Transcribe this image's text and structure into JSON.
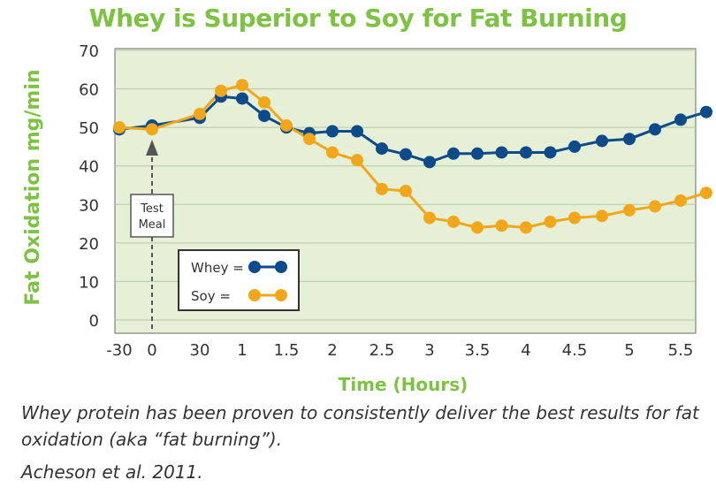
{
  "chart_data": {
    "type": "line",
    "title": "Whey is Superior to Soy for Fat Burning",
    "xlabel": "Time (Hours)",
    "ylabel": "Fat Oxidation mg/min",
    "x_tick_labels": [
      "-30",
      "0",
      "30",
      "1",
      "1.5",
      "2",
      "2.5",
      "3",
      "3.5",
      "4",
      "4.5",
      "5",
      "5.5"
    ],
    "y_ticks": [
      0,
      10,
      20,
      30,
      40,
      50,
      60,
      70
    ],
    "ylim": [
      0,
      70
    ],
    "grid": true,
    "legend": "lower-left",
    "annotation": "Test Meal",
    "series": [
      {
        "name": "Whey",
        "color": "#0d4a8a",
        "points": [
          {
            "x": -30,
            "y": 49.5
          },
          {
            "x": 0,
            "y": 50.5
          },
          {
            "x": 30,
            "y": 52.5
          },
          {
            "x": 0.75,
            "y": 58
          },
          {
            "x": 1,
            "y": 57.5
          },
          {
            "x": 1.25,
            "y": 53
          },
          {
            "x": 1.5,
            "y": 50
          },
          {
            "x": 1.75,
            "y": 48.5
          },
          {
            "x": 2,
            "y": 49
          },
          {
            "x": 2.25,
            "y": 49
          },
          {
            "x": 2.5,
            "y": 44.5
          },
          {
            "x": 2.75,
            "y": 43
          },
          {
            "x": 3,
            "y": 41
          },
          {
            "x": 3.25,
            "y": 43.2
          },
          {
            "x": 3.5,
            "y": 43.2
          },
          {
            "x": 3.75,
            "y": 43.5
          },
          {
            "x": 4,
            "y": 43.5
          },
          {
            "x": 4.25,
            "y": 43.5
          },
          {
            "x": 4.5,
            "y": 45
          },
          {
            "x": 4.75,
            "y": 46.5
          },
          {
            "x": 5,
            "y": 47
          },
          {
            "x": 5.25,
            "y": 49.5
          },
          {
            "x": 5.5,
            "y": 52
          },
          {
            "x": 5.75,
            "y": 54
          }
        ]
      },
      {
        "name": "Soy",
        "color": "#f2a71b",
        "points": [
          {
            "x": -30,
            "y": 50
          },
          {
            "x": 0,
            "y": 49.5
          },
          {
            "x": 30,
            "y": 53.5
          },
          {
            "x": 0.75,
            "y": 59.5
          },
          {
            "x": 1,
            "y": 61
          },
          {
            "x": 1.25,
            "y": 56.5
          },
          {
            "x": 1.5,
            "y": 50.5
          },
          {
            "x": 1.75,
            "y": 47
          },
          {
            "x": 2,
            "y": 43.5
          },
          {
            "x": 2.25,
            "y": 41.5
          },
          {
            "x": 2.5,
            "y": 34
          },
          {
            "x": 2.75,
            "y": 33.5
          },
          {
            "x": 3,
            "y": 26.5
          },
          {
            "x": 3.25,
            "y": 25.5
          },
          {
            "x": 3.5,
            "y": 24
          },
          {
            "x": 3.75,
            "y": 24.5
          },
          {
            "x": 4,
            "y": 24
          },
          {
            "x": 4.25,
            "y": 25.5
          },
          {
            "x": 4.5,
            "y": 26.5
          },
          {
            "x": 4.75,
            "y": 27
          },
          {
            "x": 5,
            "y": 28.5
          },
          {
            "x": 5.25,
            "y": 29.5
          },
          {
            "x": 5.5,
            "y": 31
          },
          {
            "x": 5.75,
            "y": 33
          }
        ]
      }
    ],
    "colors": {
      "title": "#7dc242",
      "axis_label": "#7dc242",
      "plot_background": "#e5f0d6",
      "grid": "#b6c9a4"
    }
  },
  "caption": "Whey protein has been proven to consistently deliver the best results for fat oxidation (aka “fat burning”).",
  "citation": "Acheson et al. 2011."
}
